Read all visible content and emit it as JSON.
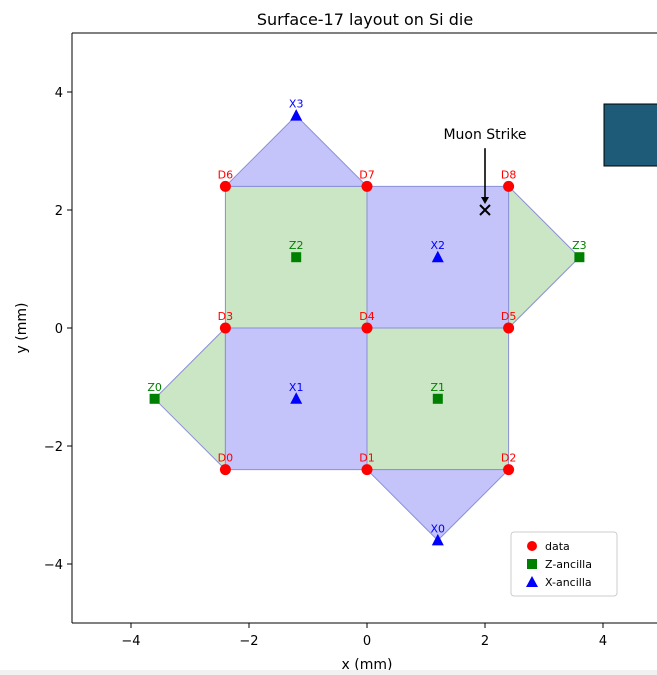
{
  "chart_data": {
    "type": "scatter",
    "title": "Surface-17 layout on Si die",
    "xlabel": "x (mm)",
    "ylabel": "y (mm)",
    "xlim": [
      -5,
      5
    ],
    "ylim": [
      -5,
      5
    ],
    "xticks": [
      -4,
      -2,
      0,
      2,
      4
    ],
    "yticks": [
      -4,
      -2,
      0,
      2,
      4
    ],
    "xtick_labels": [
      "−4",
      "−2",
      "0",
      "2",
      "4"
    ],
    "ytick_labels": [
      "−4",
      "−2",
      "0",
      "2",
      "4"
    ],
    "grid": false,
    "legend_position": "lower-right",
    "colors": {
      "data": "#ff0000",
      "z_ancilla": "#008000",
      "x_ancilla": "#0000ff",
      "z_plaquette_fill": "#cbe6c5",
      "x_plaquette_fill": "#c4c4fb",
      "plaquette_edge": "#8a8fd6",
      "overlay_box": "#1e5b78"
    },
    "series": [
      {
        "name": "data",
        "marker": "circle",
        "points": [
          {
            "label": "D0",
            "x": -2.4,
            "y": -2.4
          },
          {
            "label": "D1",
            "x": 0,
            "y": -2.4
          },
          {
            "label": "D2",
            "x": 2.4,
            "y": -2.4
          },
          {
            "label": "D3",
            "x": -2.4,
            "y": 0
          },
          {
            "label": "D4",
            "x": 0,
            "y": 0
          },
          {
            "label": "D5",
            "x": 2.4,
            "y": 0
          },
          {
            "label": "D6",
            "x": -2.4,
            "y": 2.4
          },
          {
            "label": "D7",
            "x": 0,
            "y": 2.4
          },
          {
            "label": "D8",
            "x": 2.4,
            "y": 2.4
          }
        ]
      },
      {
        "name": "Z-ancilla",
        "marker": "square",
        "points": [
          {
            "label": "Z0",
            "x": -3.6,
            "y": -1.2
          },
          {
            "label": "Z1",
            "x": 1.2,
            "y": -1.2
          },
          {
            "label": "Z2",
            "x": -1.2,
            "y": 1.2
          },
          {
            "label": "Z3",
            "x": 3.6,
            "y": 1.2
          }
        ]
      },
      {
        "name": "X-ancilla",
        "marker": "triangle",
        "points": [
          {
            "label": "X0",
            "x": 1.2,
            "y": -3.6
          },
          {
            "label": "X1",
            "x": -1.2,
            "y": -1.2
          },
          {
            "label": "X2",
            "x": 1.2,
            "y": 1.2
          },
          {
            "label": "X3",
            "x": -1.2,
            "y": 3.6
          }
        ]
      }
    ],
    "plaquettes": [
      {
        "type": "Z",
        "vertices": [
          [
            -2.4,
            0
          ],
          [
            0,
            0
          ],
          [
            0,
            2.4
          ],
          [
            -2.4,
            2.4
          ]
        ]
      },
      {
        "type": "Z",
        "vertices": [
          [
            0,
            -2.4
          ],
          [
            2.4,
            -2.4
          ],
          [
            2.4,
            0
          ],
          [
            0,
            0
          ]
        ]
      },
      {
        "type": "Z",
        "vertices": [
          [
            -2.4,
            -2.4
          ],
          [
            -3.6,
            -1.2
          ],
          [
            -2.4,
            0
          ]
        ]
      },
      {
        "type": "Z",
        "vertices": [
          [
            2.4,
            2.4
          ],
          [
            3.6,
            1.2
          ],
          [
            2.4,
            0
          ]
        ]
      },
      {
        "type": "X",
        "vertices": [
          [
            -2.4,
            -2.4
          ],
          [
            0,
            -2.4
          ],
          [
            0,
            0
          ],
          [
            -2.4,
            0
          ]
        ]
      },
      {
        "type": "X",
        "vertices": [
          [
            0,
            0
          ],
          [
            2.4,
            0
          ],
          [
            2.4,
            2.4
          ],
          [
            0,
            2.4
          ]
        ]
      },
      {
        "type": "X",
        "vertices": [
          [
            0,
            -2.4
          ],
          [
            2.4,
            -2.4
          ],
          [
            1.2,
            -3.6
          ]
        ]
      },
      {
        "type": "X",
        "vertices": [
          [
            -2.4,
            2.4
          ],
          [
            0,
            2.4
          ],
          [
            -1.2,
            3.6
          ]
        ]
      }
    ],
    "annotations": [
      {
        "text": "Muon Strike",
        "x": 2,
        "y": 2,
        "text_x": 2,
        "text_y": 3.2,
        "marker": "x"
      }
    ]
  }
}
